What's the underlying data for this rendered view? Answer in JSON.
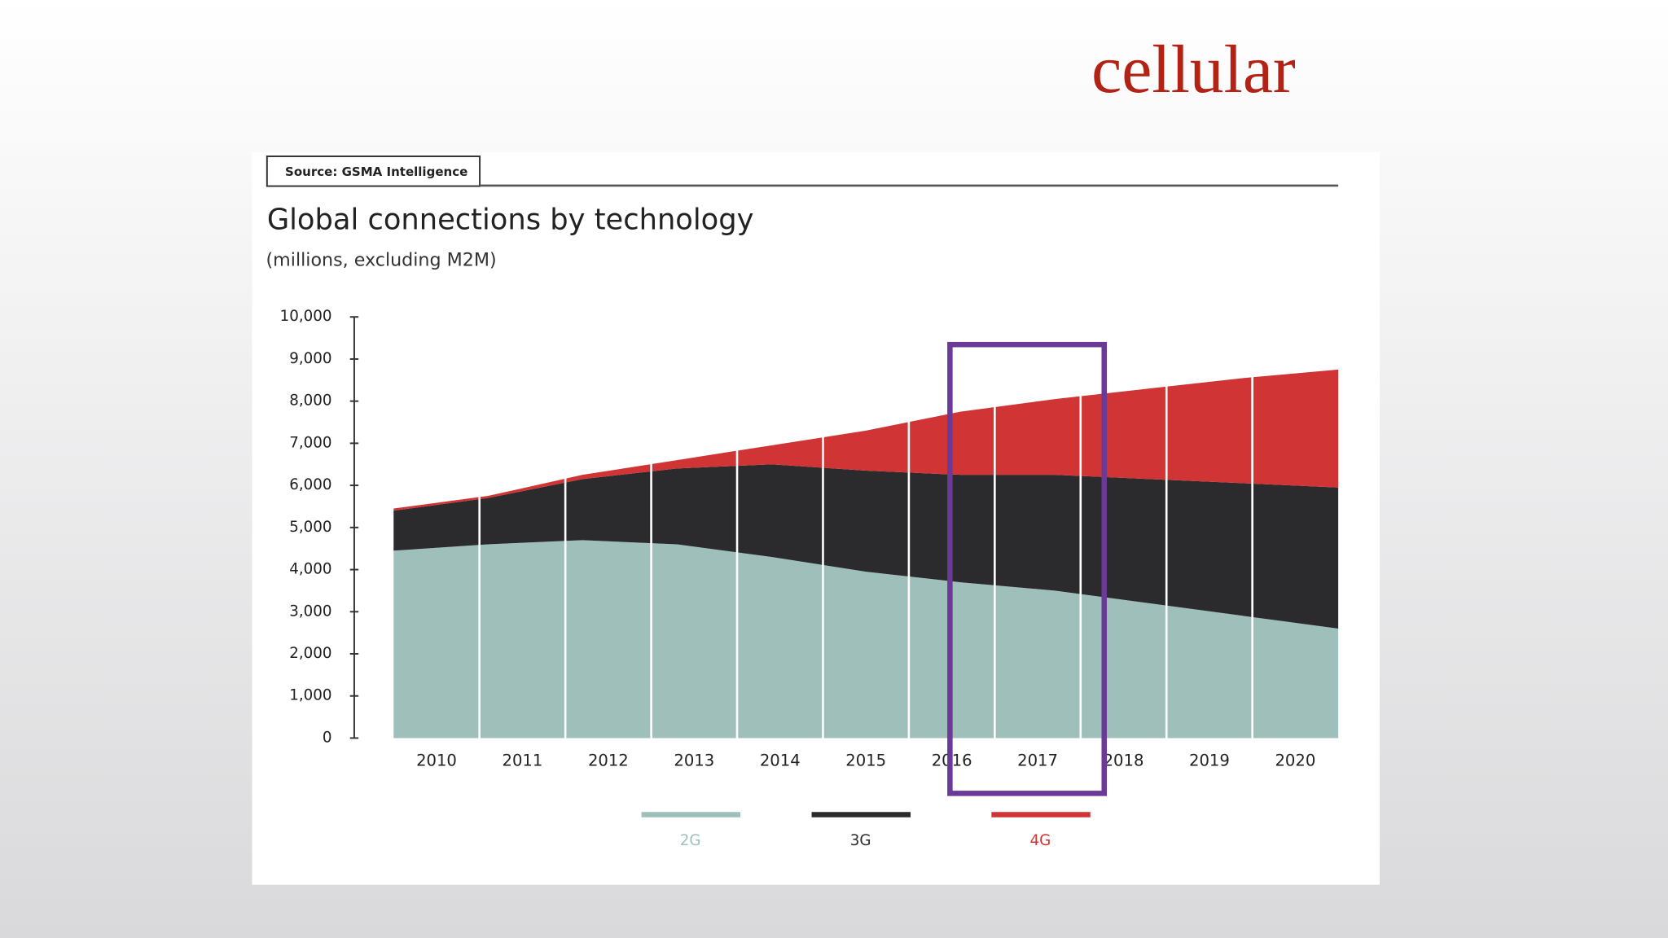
{
  "slide_title": "cellular",
  "chart_data": {
    "type": "stacked_area",
    "source": "Source: GSMA Intelligence",
    "title": "Global connections by technology",
    "subtitle": "(millions, excluding M2M)",
    "categories": [
      "2010",
      "2011",
      "2012",
      "2013",
      "2014",
      "2015",
      "2016",
      "2017",
      "2018",
      "2019",
      "2020"
    ],
    "series": [
      {
        "name": "2G",
        "color": "#9fbfbb",
        "values": [
          4450,
          4600,
          4700,
          4600,
          4300,
          3950,
          3700,
          3500,
          3200,
          2900,
          2600
        ]
      },
      {
        "name": "3G",
        "color": "#2b2a2c",
        "values": [
          950,
          1100,
          1450,
          1800,
          2200,
          2400,
          2550,
          2750,
          2950,
          3150,
          3350
        ]
      },
      {
        "name": "4G",
        "color": "#d13434",
        "values": [
          50,
          50,
          100,
          200,
          450,
          950,
          1500,
          1800,
          2150,
          2500,
          2800
        ]
      }
    ],
    "ylim": [
      0,
      10000
    ],
    "yticks": [
      0,
      {
        "value": 1000,
        "label": "1,000"
      },
      {
        "value": 2000,
        "label": "2,000"
      },
      {
        "value": 3000,
        "label": "3,000"
      },
      {
        "value": 4000,
        "label": "4,000"
      },
      {
        "value": 5000,
        "label": "5,000"
      },
      {
        "value": 6000,
        "label": "6,000"
      },
      {
        "value": 7000,
        "label": "7,000"
      },
      {
        "value": 8000,
        "label": "8,000"
      },
      {
        "value": 9000,
        "label": "9,000"
      },
      {
        "value": 10000,
        "label": "10,000"
      }
    ],
    "legend": "bottom"
  }
}
